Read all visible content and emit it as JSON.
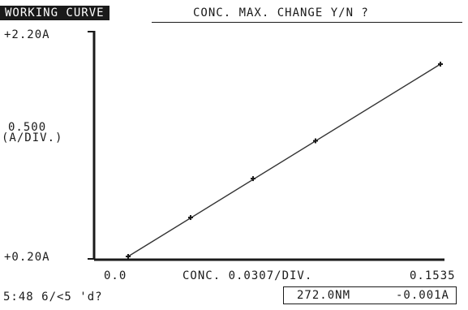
{
  "header": {
    "title": "WORKING CURVE",
    "prompt": "CONC. MAX. CHANGE Y/N ?"
  },
  "yaxis": {
    "top_label": "+2.20A",
    "bottom_label": "+0.20A",
    "scale_line1": "0.500",
    "scale_line2": "(A/DIV.)"
  },
  "xaxis": {
    "min_label": "0.0",
    "scale_label": "CONC. 0.0307/DIV.",
    "max_label": "0.1535"
  },
  "status": {
    "left_text": "5:48  6/<5 'd?",
    "wavelength": "272.0NM",
    "absorbance": "-0.001A"
  },
  "colors": {
    "ink": "#1a1a1a",
    "background": "#ffffff"
  },
  "chart_data": {
    "type": "line",
    "x": [
      0.0,
      0.0307,
      0.0614,
      0.0921,
      0.1535
    ],
    "y": [
      0.2,
      0.55,
      0.9,
      1.24,
      1.93
    ],
    "markers": true,
    "fit_line": {
      "x": [
        0.0,
        0.1535
      ],
      "y": [
        0.2,
        1.93
      ]
    },
    "xlim": [
      0.0,
      0.1535
    ],
    "ylim": [
      0.2,
      2.2
    ],
    "xlabel": "CONC. 0.0307/DIV.",
    "ylabel": "0.500 (A/DIV.)",
    "grid": false
  }
}
